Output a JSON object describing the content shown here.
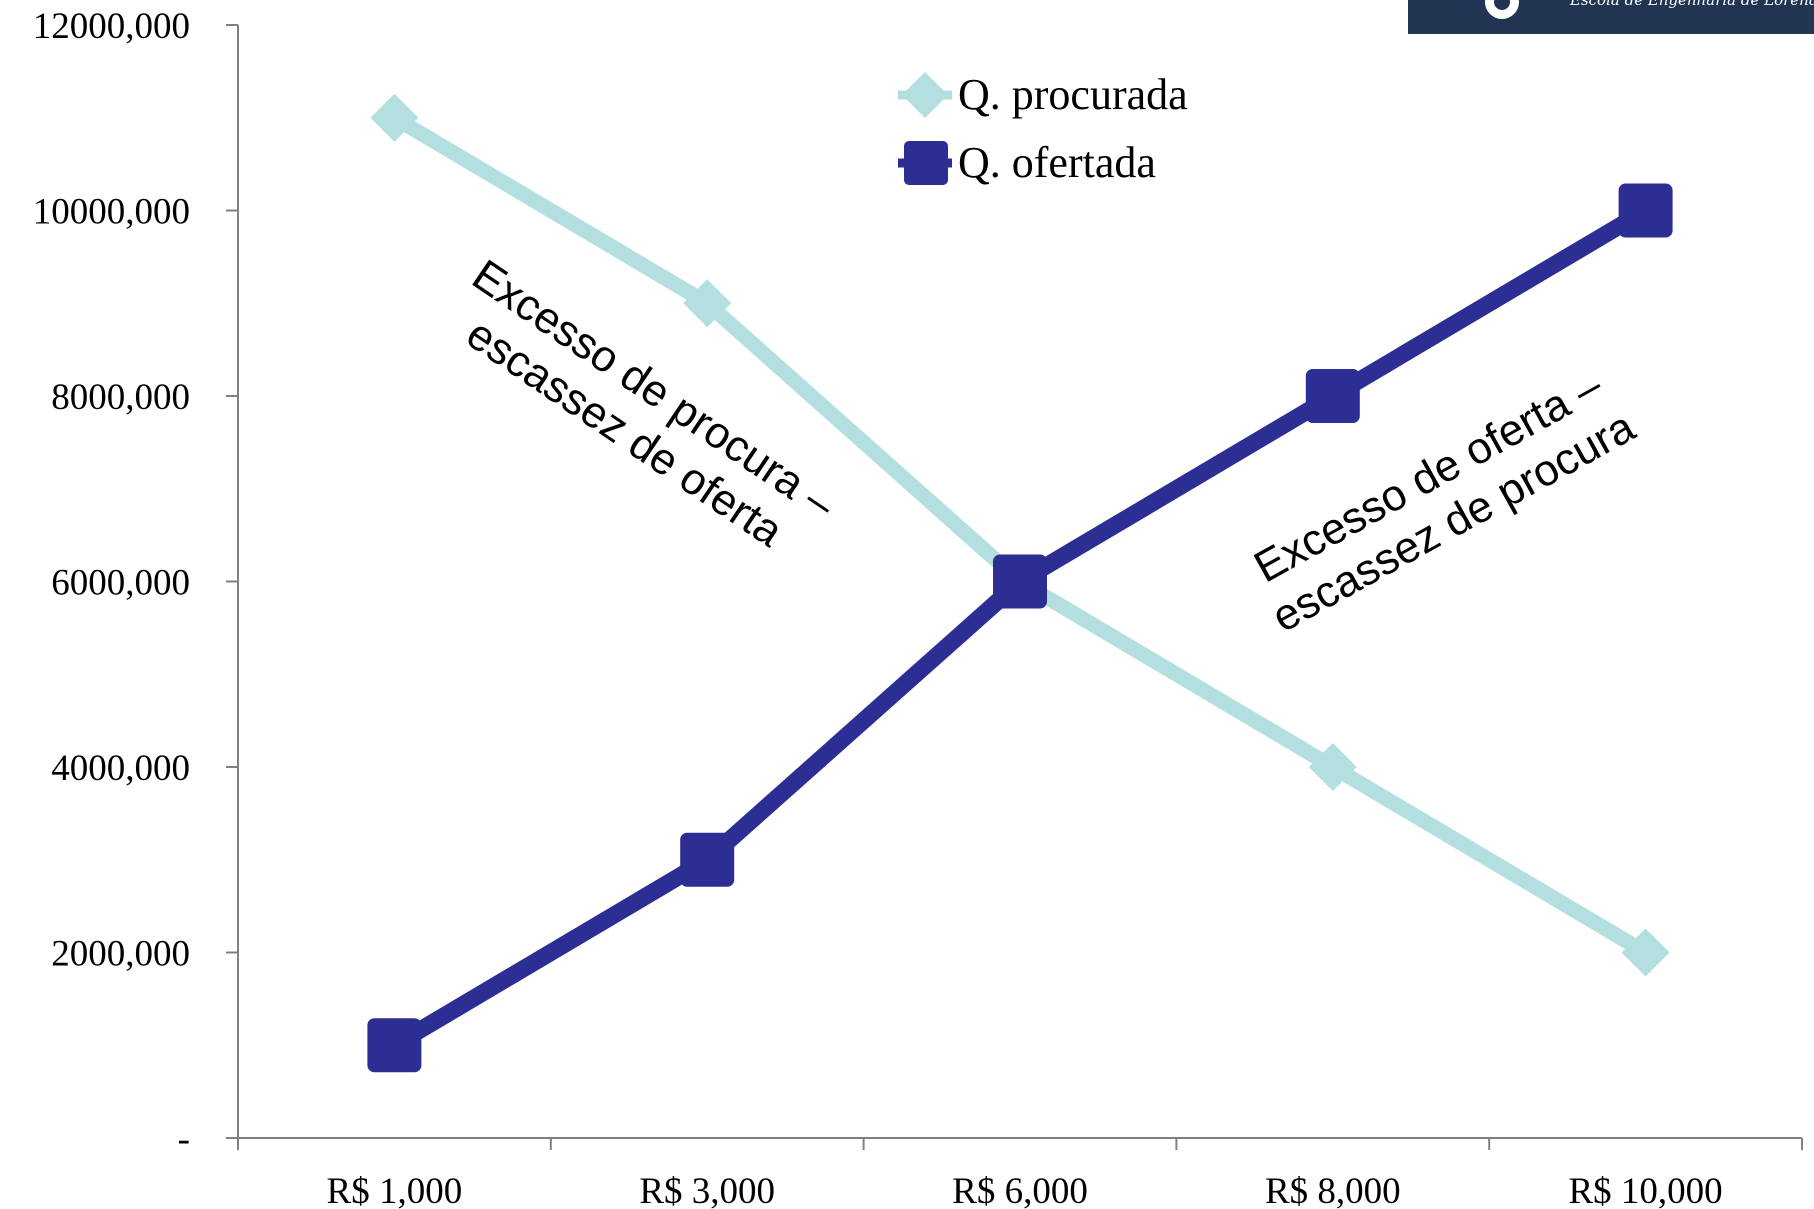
{
  "chart_data": {
    "type": "line",
    "categories": [
      "R$ 1,000",
      "R$ 3,000",
      "R$ 6,000",
      "R$ 8,000",
      "R$ 10,000"
    ],
    "y_tick_labels": [
      "-",
      "2000,000",
      "4000,000",
      "6000,000",
      "8000,000",
      "10000,000",
      "12000,000"
    ],
    "y_ticks": [
      0,
      2000,
      4000,
      6000,
      8000,
      10000,
      12000
    ],
    "ylim": [
      0,
      12000
    ],
    "series": [
      {
        "name": "Q. procurada",
        "values": [
          11000,
          9000,
          6000,
          4000,
          2000
        ],
        "color": "#b4dfe0",
        "marker": "diamond"
      },
      {
        "name": "Q. ofertada",
        "values": [
          1000,
          3000,
          6000,
          8000,
          10000
        ],
        "color": "#2d2e94",
        "marker": "square"
      }
    ],
    "legend_position": "top-center",
    "grid": false,
    "annotations": [
      {
        "lines": [
          "Excesso de procura –",
          "escassez de oferta"
        ],
        "rotation": 34
      },
      {
        "lines": [
          "Excesso de oferta –",
          "escassez de procura"
        ],
        "rotation": -29
      }
    ]
  },
  "logo": {
    "caption": "Escola de Engenharia de Lorena",
    "color": "#1f3552"
  }
}
